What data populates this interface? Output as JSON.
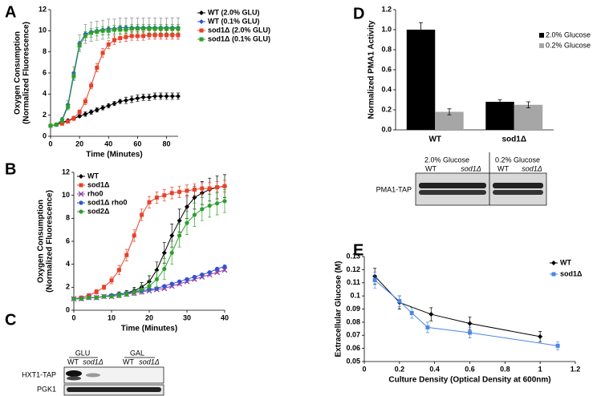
{
  "chart_data": [
    {
      "panel": "A",
      "type": "line",
      "ylabel": [
        "Oxygen Consumption",
        "(Normalized Fluorescence)"
      ],
      "xlabel": "Time (Minutes)",
      "x": [
        0,
        4,
        8,
        12,
        16,
        20,
        24,
        28,
        32,
        36,
        40,
        44,
        48,
        52,
        56,
        60,
        64,
        68,
        72,
        76,
        80,
        84,
        88
      ],
      "xlim": [
        0,
        88
      ],
      "xticks": [
        0,
        20,
        40,
        60,
        80
      ],
      "ylim": [
        0,
        12
      ],
      "yticks": [
        0,
        2,
        4,
        6,
        8,
        10,
        12
      ],
      "legend": "upper right outside",
      "series": [
        {
          "name": "WT (2.0% GLU)",
          "color": "#000000",
          "marker": "diamond",
          "values": [
            1.0,
            1.1,
            1.3,
            1.5,
            1.7,
            1.9,
            2.1,
            2.3,
            2.5,
            2.7,
            2.9,
            3.1,
            3.3,
            3.4,
            3.5,
            3.6,
            3.7,
            3.7,
            3.8,
            3.8,
            3.8,
            3.8,
            3.8
          ],
          "errors": [
            0.1,
            0.1,
            0.1,
            0.1,
            0.1,
            0.1,
            0.2,
            0.2,
            0.2,
            0.2,
            0.2,
            0.2,
            0.2,
            0.3,
            0.3,
            0.3,
            0.3,
            0.3,
            0.3,
            0.3,
            0.3,
            0.3,
            0.3
          ]
        },
        {
          "name": "WT (0.1% GLU)",
          "color": "#2f55d4",
          "marker": "diamond",
          "values": [
            1.0,
            1.1,
            1.6,
            3.0,
            6.0,
            8.8,
            9.7,
            9.9,
            10.0,
            10.1,
            10.2,
            10.2,
            10.3,
            10.3,
            10.3,
            10.3,
            10.3,
            10.3,
            10.3,
            10.3,
            10.3,
            10.3,
            10.3
          ],
          "errors": [
            0.1,
            0.1,
            0.2,
            0.4,
            0.6,
            0.8,
            0.9,
            0.9,
            0.9,
            0.9,
            0.9,
            0.9,
            0.9,
            0.9,
            0.9,
            0.9,
            0.9,
            0.9,
            0.9,
            0.9,
            0.9,
            0.9,
            0.9
          ]
        },
        {
          "name": "sod1Δ (2.0% GLU)",
          "color": "#e8412a",
          "marker": "square",
          "values": [
            1.0,
            1.1,
            1.2,
            1.4,
            1.7,
            2.3,
            3.3,
            4.8,
            6.5,
            7.9,
            8.7,
            9.1,
            9.3,
            9.4,
            9.5,
            9.5,
            9.5,
            9.6,
            9.6,
            9.6,
            9.6,
            9.6,
            9.6
          ],
          "errors": [
            0.1,
            0.1,
            0.1,
            0.1,
            0.2,
            0.2,
            0.3,
            0.3,
            0.4,
            0.4,
            0.4,
            0.4,
            0.4,
            0.4,
            0.4,
            0.4,
            0.4,
            0.4,
            0.4,
            0.4,
            0.4,
            0.4,
            0.4
          ]
        },
        {
          "name": "sod1Δ (0.1% GLU)",
          "color": "#2ca02c",
          "marker": "square",
          "values": [
            1.0,
            1.1,
            1.5,
            2.8,
            5.7,
            8.6,
            9.5,
            9.8,
            9.9,
            10.0,
            10.0,
            10.1,
            10.1,
            10.1,
            10.2,
            10.2,
            10.2,
            10.2,
            10.2,
            10.2,
            10.2,
            10.2,
            10.2
          ],
          "errors": [
            0.1,
            0.1,
            0.2,
            0.3,
            0.4,
            0.4,
            0.4,
            0.4,
            0.4,
            0.4,
            0.4,
            0.4,
            0.4,
            0.4,
            0.4,
            0.4,
            0.4,
            0.4,
            0.4,
            0.4,
            0.4,
            0.4,
            0.4
          ]
        }
      ]
    },
    {
      "panel": "B",
      "type": "line",
      "ylabel": [
        "Oxygen Consumption",
        "(Normalized Fluorescence)"
      ],
      "xlabel": "Time (Minutes)",
      "x": [
        0,
        2,
        4,
        6,
        8,
        10,
        12,
        14,
        16,
        18,
        20,
        22,
        24,
        26,
        28,
        30,
        32,
        34,
        36,
        38,
        40
      ],
      "xlim": [
        0,
        40
      ],
      "xticks": [
        0,
        10,
        20,
        30,
        40
      ],
      "ylim": [
        0,
        12
      ],
      "yticks": [
        0,
        2,
        4,
        6,
        8,
        10,
        12
      ],
      "legend": "upper left",
      "series": [
        {
          "name": "WT",
          "color": "#000000",
          "marker": "diamond",
          "values": [
            1.0,
            1.0,
            1.1,
            1.1,
            1.2,
            1.3,
            1.4,
            1.5,
            1.7,
            2.0,
            2.5,
            3.5,
            5.0,
            6.5,
            7.8,
            9.0,
            9.8,
            10.2,
            10.5,
            10.7,
            10.8
          ],
          "errors": [
            0.1,
            0.1,
            0.1,
            0.1,
            0.1,
            0.1,
            0.2,
            0.2,
            0.3,
            0.4,
            0.5,
            0.7,
            0.9,
            1.0,
            1.0,
            1.0,
            1.0,
            1.0,
            1.0,
            1.0,
            1.0
          ]
        },
        {
          "name": "sod1Δ",
          "color": "#e8412a",
          "marker": "square",
          "values": [
            1.0,
            1.1,
            1.3,
            1.6,
            2.0,
            2.6,
            3.5,
            4.8,
            6.5,
            8.3,
            9.4,
            9.8,
            10.0,
            10.2,
            10.3,
            10.4,
            10.5,
            10.6,
            10.6,
            10.7,
            10.8
          ],
          "errors": [
            0.1,
            0.1,
            0.1,
            0.2,
            0.2,
            0.3,
            0.4,
            0.5,
            0.5,
            0.5,
            0.5,
            0.5,
            0.5,
            0.5,
            0.5,
            0.5,
            0.5,
            0.5,
            0.5,
            0.5,
            0.5
          ]
        },
        {
          "name": "rho0",
          "color": "#8e3fa8",
          "marker": "cross",
          "values": [
            1.0,
            1.0,
            1.1,
            1.1,
            1.2,
            1.2,
            1.3,
            1.4,
            1.5,
            1.6,
            1.7,
            1.8,
            1.9,
            2.1,
            2.3,
            2.5,
            2.7,
            2.9,
            3.1,
            3.3,
            3.5
          ],
          "errors": [
            0.1,
            0.1,
            0.1,
            0.1,
            0.1,
            0.1,
            0.1,
            0.1,
            0.1,
            0.1,
            0.1,
            0.1,
            0.1,
            0.1,
            0.1,
            0.1,
            0.1,
            0.1,
            0.1,
            0.1,
            0.1
          ]
        },
        {
          "name": "sod1Δ rho0",
          "color": "#2f55d4",
          "marker": "circle",
          "values": [
            1.0,
            1.0,
            1.1,
            1.1,
            1.2,
            1.3,
            1.4,
            1.5,
            1.6,
            1.7,
            1.8,
            1.9,
            2.1,
            2.3,
            2.5,
            2.7,
            2.9,
            3.1,
            3.3,
            3.6,
            3.8
          ],
          "errors": [
            0.1,
            0.1,
            0.1,
            0.1,
            0.1,
            0.1,
            0.1,
            0.1,
            0.1,
            0.1,
            0.1,
            0.1,
            0.1,
            0.1,
            0.1,
            0.1,
            0.1,
            0.1,
            0.1,
            0.1,
            0.1
          ]
        },
        {
          "name": "sod2Δ",
          "color": "#2ca02c",
          "marker": "circle",
          "values": [
            1.0,
            1.0,
            1.1,
            1.1,
            1.2,
            1.2,
            1.3,
            1.4,
            1.6,
            1.8,
            2.1,
            2.7,
            3.6,
            5.0,
            6.5,
            7.6,
            8.3,
            8.8,
            9.1,
            9.3,
            9.5
          ],
          "errors": [
            0.1,
            0.1,
            0.1,
            0.1,
            0.1,
            0.1,
            0.2,
            0.2,
            0.3,
            0.4,
            0.5,
            0.7,
            0.9,
            1.0,
            1.0,
            1.0,
            1.0,
            1.0,
            1.0,
            1.0,
            1.0
          ]
        }
      ]
    },
    {
      "panel": "D",
      "type": "bar",
      "ylabel": [
        "Normalized PMA1 Activity"
      ],
      "categories": [
        "WT",
        "sod1Δ"
      ],
      "ylim": [
        0,
        1.2
      ],
      "yticks": [
        {
          "value": 0,
          "label": "0.0"
        },
        0.2,
        0.4,
        0.6,
        0.8,
        {
          "value": 1,
          "label": "1.0"
        },
        1.2
      ],
      "legend": "upper right",
      "series": [
        {
          "name": "2.0% Glucose",
          "color": "#000000",
          "values": [
            1.0,
            0.28
          ],
          "errors": [
            0.07,
            0.02
          ]
        },
        {
          "name": "0.2% Glucose",
          "color": "#a6a6a6",
          "values": [
            0.18,
            0.25
          ],
          "errors": [
            0.03,
            0.03
          ]
        }
      ]
    },
    {
      "panel": "E",
      "type": "line",
      "ylabel": [
        "Extracellular Glucose (M)"
      ],
      "xlabel": "Culture Density (Optical Density at 600nm)",
      "xlim": [
        0,
        1.2
      ],
      "xticks": [
        0,
        0.2,
        0.4,
        0.6,
        0.8,
        1,
        1.2
      ],
      "ylim": [
        0.05,
        0.13
      ],
      "yticks": [
        0.05,
        0.06,
        0.07,
        0.08,
        0.09,
        0.1,
        0.11,
        0.12,
        0.13
      ],
      "legend": "upper right",
      "series": [
        {
          "name": "WT",
          "color": "#000000",
          "marker": "diamond",
          "x": [
            0.06,
            0.2,
            0.38,
            0.6,
            1.0
          ],
          "values": [
            0.115,
            0.095,
            0.086,
            0.079,
            0.069
          ],
          "errors": [
            0.006,
            0.005,
            0.005,
            0.005,
            0.004
          ]
        },
        {
          "name": "sod1Δ",
          "color": "#4a86e8",
          "marker": "square",
          "x": [
            0.06,
            0.2,
            0.27,
            0.36,
            0.6,
            1.1
          ],
          "values": [
            0.112,
            0.096,
            0.087,
            0.076,
            0.072,
            0.062
          ],
          "errors": [
            0.006,
            0.004,
            0.004,
            0.004,
            0.004,
            0.003
          ]
        }
      ]
    }
  ],
  "blots": {
    "C": {
      "panel": "C",
      "groups": [
        "GLU",
        "GAL"
      ],
      "lanes": [
        "WT",
        "sod1Δ",
        "WT",
        "sod1Δ"
      ],
      "rows": [
        "HXT1-TAP",
        "PGK1"
      ]
    },
    "D": {
      "groups": [
        "2.0% Glucose",
        "0.2% Glucose"
      ],
      "lanes": [
        "WT",
        "sod1Δ",
        "WT",
        "sod1Δ"
      ],
      "rows": [
        "PMA1-TAP"
      ]
    }
  }
}
